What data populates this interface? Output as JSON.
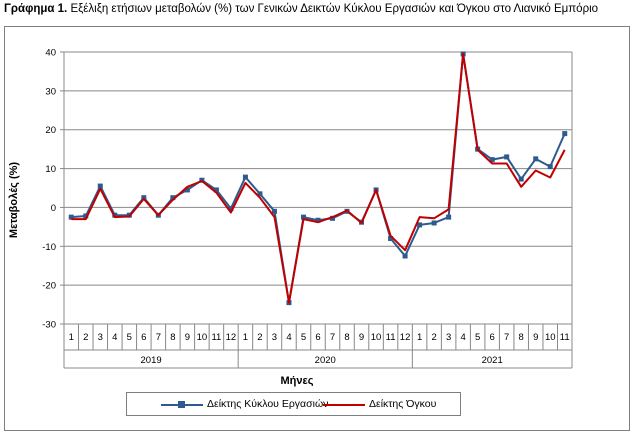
{
  "header": {
    "title_bold": "Γράφημα 1.",
    "title_rest": " Εξέλιξη ετήσιων μεταβολών (%) των Γενικών Δεικτών Κύκλου Εργασιών και Όγκου στο Λιανικό Εμπόριο"
  },
  "chart_data": {
    "type": "line",
    "title": "Γράφημα 1. Εξέλιξη ετήσιων μεταβολών (%) των Γενικών Δεικτών Κύκλου Εργασιών και Όγκου στο Λιανικό Εμπόριο",
    "xlabel": "Μήνες",
    "ylabel": "Μεταβολές (%)",
    "ylim": [
      -30,
      40
    ],
    "yticks": [
      "-30",
      "-20",
      "-10",
      "0",
      "10",
      "20",
      "30",
      "40"
    ],
    "grid": "horizontal",
    "legend_position": "bottom",
    "years": [
      {
        "label": "2019",
        "months": 12
      },
      {
        "label": "2020",
        "months": 12
      },
      {
        "label": "2021",
        "months": 11
      }
    ],
    "categories": [
      "1",
      "2",
      "3",
      "4",
      "5",
      "6",
      "7",
      "8",
      "9",
      "10",
      "11",
      "12",
      "1",
      "2",
      "3",
      "4",
      "5",
      "6",
      "7",
      "8",
      "9",
      "10",
      "11",
      "12",
      "1",
      "2",
      "3",
      "4",
      "5",
      "6",
      "7",
      "8",
      "9",
      "10",
      "11"
    ],
    "series": [
      {
        "name": "Δείκτης Κύκλου Εργασιών",
        "color": "#2e5a8e",
        "marker": "square",
        "values": [
          -2.5,
          -2.2,
          5.5,
          -2.0,
          -2.0,
          2.5,
          -2.0,
          2.5,
          4.5,
          7.0,
          4.5,
          -0.3,
          7.8,
          3.5,
          -1.0,
          -24.5,
          -2.5,
          -3.3,
          -2.8,
          -1.0,
          -3.8,
          4.5,
          -8.0,
          -12.5,
          -4.5,
          -4.0,
          -2.5,
          39.5,
          15.0,
          12.3,
          13.0,
          7.3,
          12.5,
          10.5,
          19.0
        ]
      },
      {
        "name": "Δείκτης Όγκου",
        "color": "#c00000",
        "marker": "none",
        "values": [
          -3.0,
          -3.0,
          4.8,
          -2.5,
          -2.3,
          2.2,
          -2.0,
          2.0,
          5.3,
          6.8,
          3.8,
          -1.3,
          6.3,
          2.5,
          -2.5,
          -24.5,
          -3.0,
          -3.8,
          -2.5,
          -0.8,
          -4.0,
          4.5,
          -7.3,
          -11.0,
          -2.5,
          -2.8,
          -0.5,
          39.5,
          14.8,
          11.3,
          11.3,
          5.3,
          9.5,
          7.7,
          14.8
        ]
      }
    ]
  }
}
